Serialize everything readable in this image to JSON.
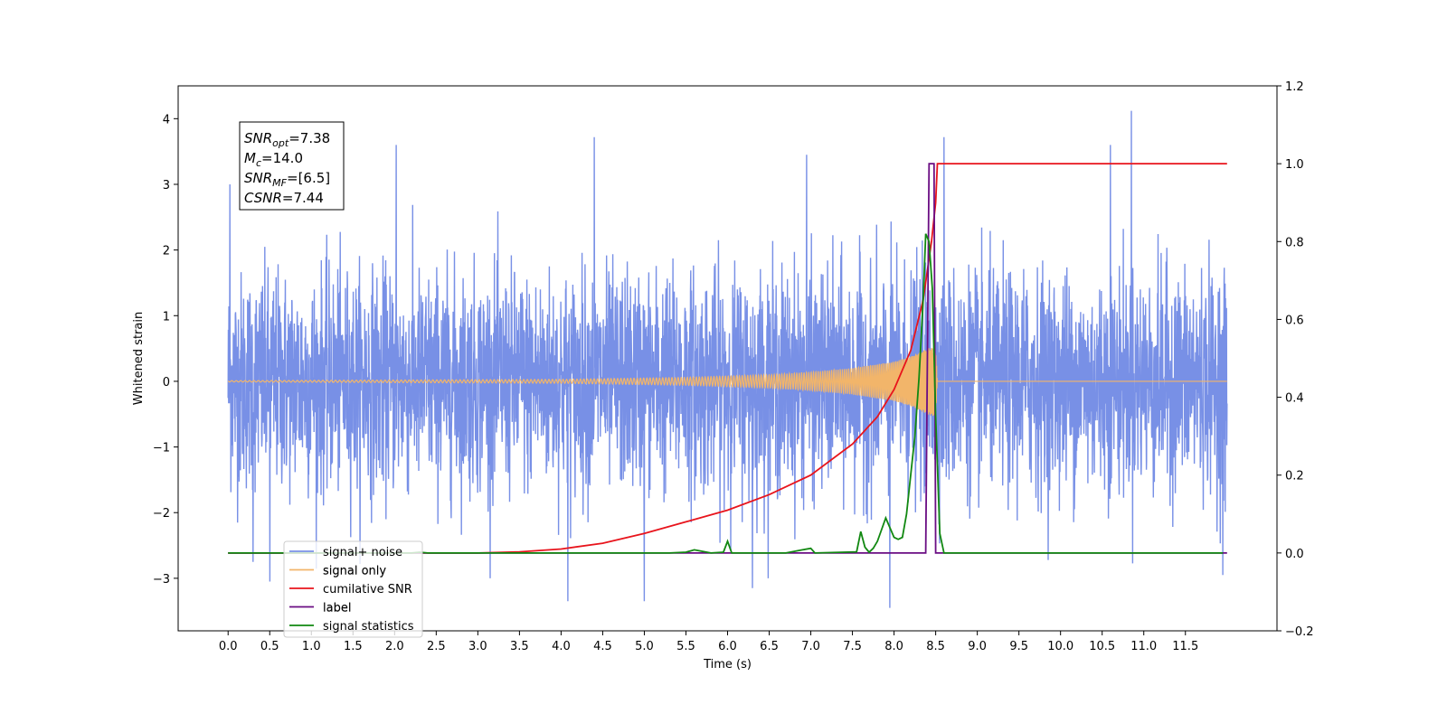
{
  "chart_data": {
    "type": "line",
    "xlabel": "Time (s)",
    "ylabel": "Whitened strain",
    "xlim": [
      -0.6,
      12.6
    ],
    "ylim": [
      -3.8,
      4.5
    ],
    "y2lim": [
      -0.2,
      1.2
    ],
    "x_ticks": [
      0.0,
      0.5,
      1.0,
      1.5,
      2.0,
      2.5,
      3.0,
      3.5,
      4.0,
      4.5,
      5.0,
      5.5,
      6.0,
      6.5,
      7.0,
      7.5,
      8.0,
      8.5,
      9.0,
      9.5,
      10.0,
      10.5,
      11.0,
      11.5
    ],
    "x_tick_labels": [
      "0.0",
      "0.5",
      "1.0",
      "1.5",
      "2.0",
      "2.5",
      "3.0",
      "3.5",
      "4.0",
      "4.5",
      "5.0",
      "5.5",
      "6.0",
      "6.5",
      "7.0",
      "7.5",
      "8.0",
      "8.5",
      "9.0",
      "9.5",
      "10.0",
      "10.5",
      "11.0",
      "11.5"
    ],
    "y_ticks": [
      -3,
      -2,
      -1,
      0,
      1,
      2,
      3,
      4
    ],
    "y_tick_labels": [
      "−3",
      "−2",
      "−1",
      "0",
      "1",
      "2",
      "3",
      "4"
    ],
    "y2_ticks": [
      -0.2,
      0.0,
      0.2,
      0.4,
      0.6,
      0.8,
      1.0,
      1.2
    ],
    "y2_tick_labels": [
      "−0.2",
      "0.0",
      "0.2",
      "0.4",
      "0.6",
      "0.8",
      "1.0",
      "1.2"
    ],
    "legend_position": "lower-left",
    "annotation_lines": [
      {
        "text": "SNR",
        "sub": "opt",
        "rest": "=7.38"
      },
      {
        "text": "M",
        "sub": "c",
        "rest": "=14.0"
      },
      {
        "text": "SNR",
        "sub": "MF",
        "rest": "=[6.5]"
      },
      {
        "text": "CSNR",
        "sub": "",
        "rest": "=7.44"
      }
    ],
    "series": [
      {
        "name": "signal+ noise",
        "axis": "left",
        "color": "#7890e6",
        "x_range": [
          0.0,
          12.0
        ],
        "noise_sigma": 1.0,
        "y_extremes": [
          {
            "x": 0.02,
            "y": 3.0
          },
          {
            "x": 0.3,
            "y": -2.75
          },
          {
            "x": 0.5,
            "y": -3.05
          },
          {
            "x": 2.02,
            "y": 3.6
          },
          {
            "x": 4.08,
            "y": -3.35
          },
          {
            "x": 4.4,
            "y": 3.72
          },
          {
            "x": 5.0,
            "y": -3.35
          },
          {
            "x": 6.3,
            "y": -3.15
          },
          {
            "x": 6.95,
            "y": 3.45
          },
          {
            "x": 7.95,
            "y": -3.45
          },
          {
            "x": 8.6,
            "y": 3.72
          },
          {
            "x": 10.85,
            "y": 4.12
          },
          {
            "x": 10.6,
            "y": 3.6
          },
          {
            "x": 11.95,
            "y": -2.95
          }
        ]
      },
      {
        "name": "signal only",
        "axis": "left",
        "color": "#f2b56a",
        "x_range": [
          0.0,
          12.0
        ],
        "envelope": {
          "x": [
            0.0,
            4.0,
            5.5,
            6.5,
            7.0,
            7.5,
            8.0,
            8.2,
            8.4,
            8.5,
            8.52,
            12.0
          ],
          "amp": [
            0.01,
            0.03,
            0.06,
            0.1,
            0.14,
            0.2,
            0.3,
            0.38,
            0.5,
            0.55,
            0.0,
            0.0
          ]
        }
      },
      {
        "name": "cumilative SNR",
        "axis": "right",
        "color": "#e8141c",
        "x": [
          0.0,
          2.0,
          3.0,
          3.5,
          4.0,
          4.5,
          5.0,
          5.5,
          6.0,
          6.5,
          7.0,
          7.5,
          7.8,
          8.0,
          8.2,
          8.35,
          8.45,
          8.5,
          8.52,
          12.0
        ],
        "y": [
          0.0,
          0.0,
          0.0,
          0.003,
          0.01,
          0.025,
          0.05,
          0.08,
          0.11,
          0.15,
          0.2,
          0.28,
          0.35,
          0.42,
          0.52,
          0.65,
          0.8,
          0.9,
          1.0,
          1.0
        ]
      },
      {
        "name": "label",
        "axis": "right",
        "color": "#6a0d83",
        "x": [
          0.0,
          8.38,
          8.42,
          8.48,
          8.5,
          12.0
        ],
        "y": [
          0.0,
          0.0,
          1.0,
          1.0,
          0.0,
          0.0
        ]
      },
      {
        "name": "signal statistics",
        "axis": "right",
        "color": "#118811",
        "x": [
          0.0,
          2.2,
          2.3,
          2.4,
          5.3,
          5.5,
          5.6,
          5.7,
          5.8,
          5.95,
          6.0,
          6.05,
          6.7,
          6.9,
          7.0,
          7.05,
          7.55,
          7.6,
          7.65,
          7.7,
          7.75,
          7.8,
          7.85,
          7.9,
          8.0,
          8.05,
          8.1,
          8.15,
          8.2,
          8.25,
          8.3,
          8.35,
          8.38,
          8.42,
          8.46,
          8.5,
          8.55,
          8.6,
          11.95
        ],
        "y": [
          0.0,
          0.0,
          0.002,
          0.0,
          0.0,
          0.002,
          0.008,
          0.004,
          0.0,
          0.002,
          0.03,
          0.0,
          0.0,
          0.008,
          0.012,
          0.0,
          0.003,
          0.055,
          0.015,
          0.002,
          0.012,
          0.03,
          0.06,
          0.09,
          0.04,
          0.035,
          0.04,
          0.1,
          0.2,
          0.3,
          0.45,
          0.65,
          0.82,
          0.8,
          0.68,
          0.35,
          0.05,
          0.0,
          0.0
        ]
      }
    ],
    "legend_entries": [
      {
        "label": "signal+ noise",
        "color": "#7890e6"
      },
      {
        "label": "signal only",
        "color": "#f2b56a"
      },
      {
        "label": "cumilative SNR",
        "color": "#e8141c"
      },
      {
        "label": "label",
        "color": "#6a0d83"
      },
      {
        "label": "signal statistics",
        "color": "#118811"
      }
    ],
    "legend_ghost_entries": [
      "signal only",
      "label"
    ]
  }
}
